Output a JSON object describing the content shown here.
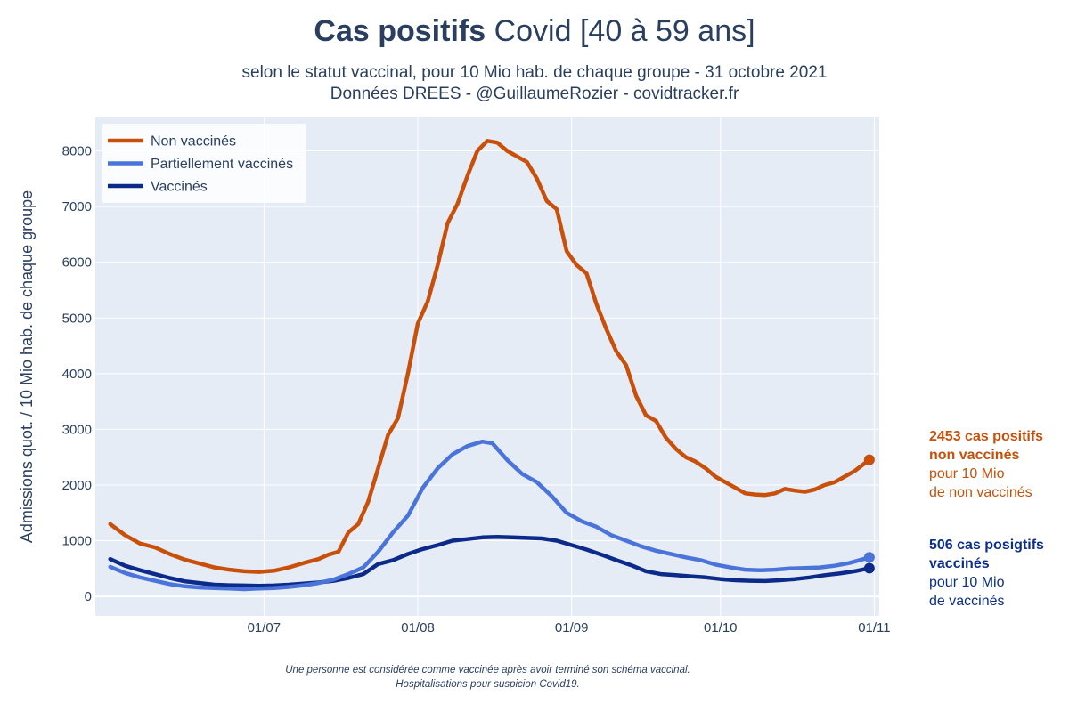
{
  "header": {
    "title_bold": "Cas positifs",
    "title_rest": " Covid [40 à 59 ans]",
    "subtitle_line1": "selon le statut vaccinal, pour 10 Mio hab. de chaque groupe - 31 octobre 2021",
    "subtitle_line2": "Données DREES - @GuillaumeRozier - covidtracker.fr"
  },
  "footer": {
    "line1": "Une personne est considérée comme vaccinée après avoir terminé son schéma vaccinal.",
    "line2": "Hospitalisations pour suspicion Covid19."
  },
  "annotations": {
    "non_vaccines": {
      "bold1": "2453 cas positifs",
      "bold2": "non vaccinés",
      "line3": "pour 10 Mio",
      "line4": "de non vaccinés"
    },
    "vaccines": {
      "bold1": "506 cas posigtifs",
      "bold2": "vaccinés",
      "line3": "pour 10 Mio",
      "line4": "de vaccinés"
    }
  },
  "colors": {
    "non_vaccines": "#c8500a",
    "partiellement": "#4a74d9",
    "vaccines": "#0b2a8a",
    "plot_bg": "#e5ecf6"
  },
  "chart_data": {
    "type": "line",
    "ylabel": "Admissions quot. / 10 Mio hab. de chaque groupe",
    "xlabel": "",
    "x_start": "2021-05-31",
    "x_end": "2021-10-31",
    "xlim": [
      "2021-05-28",
      "2021-11-02"
    ],
    "ylim": [
      -350,
      8600
    ],
    "x_ticks": [
      {
        "date": "2021-07-01",
        "label": "01/07"
      },
      {
        "date": "2021-08-01",
        "label": "01/08"
      },
      {
        "date": "2021-09-01",
        "label": "01/09"
      },
      {
        "date": "2021-10-01",
        "label": "01/10"
      },
      {
        "date": "2021-11-01",
        "label": "01/11"
      }
    ],
    "y_ticks": [
      0,
      1000,
      2000,
      3000,
      4000,
      5000,
      6000,
      7000,
      8000
    ],
    "grid": true,
    "legend_position": "top-left",
    "series": [
      {
        "name": "Non vaccinés",
        "color": "#c8500a",
        "points": [
          [
            "2021-05-31",
            1300
          ],
          [
            "2021-06-03",
            1100
          ],
          [
            "2021-06-06",
            950
          ],
          [
            "2021-06-09",
            880
          ],
          [
            "2021-06-12",
            760
          ],
          [
            "2021-06-15",
            660
          ],
          [
            "2021-06-18",
            590
          ],
          [
            "2021-06-21",
            520
          ],
          [
            "2021-06-24",
            480
          ],
          [
            "2021-06-27",
            450
          ],
          [
            "2021-06-30",
            440
          ],
          [
            "2021-07-03",
            460
          ],
          [
            "2021-07-06",
            520
          ],
          [
            "2021-07-09",
            600
          ],
          [
            "2021-07-12",
            670
          ],
          [
            "2021-07-14",
            750
          ],
          [
            "2021-07-16",
            800
          ],
          [
            "2021-07-18",
            1150
          ],
          [
            "2021-07-20",
            1300
          ],
          [
            "2021-07-22",
            1700
          ],
          [
            "2021-07-24",
            2300
          ],
          [
            "2021-07-26",
            2900
          ],
          [
            "2021-07-28",
            3200
          ],
          [
            "2021-07-30",
            4000
          ],
          [
            "2021-08-01",
            4900
          ],
          [
            "2021-08-03",
            5300
          ],
          [
            "2021-08-05",
            5950
          ],
          [
            "2021-08-07",
            6700
          ],
          [
            "2021-08-09",
            7050
          ],
          [
            "2021-08-11",
            7550
          ],
          [
            "2021-08-13",
            8000
          ],
          [
            "2021-08-15",
            8180
          ],
          [
            "2021-08-17",
            8150
          ],
          [
            "2021-08-19",
            8000
          ],
          [
            "2021-08-21",
            7900
          ],
          [
            "2021-08-23",
            7800
          ],
          [
            "2021-08-25",
            7500
          ],
          [
            "2021-08-27",
            7100
          ],
          [
            "2021-08-29",
            6950
          ],
          [
            "2021-08-31",
            6200
          ],
          [
            "2021-09-02",
            5950
          ],
          [
            "2021-09-04",
            5800
          ],
          [
            "2021-09-06",
            5250
          ],
          [
            "2021-09-08",
            4800
          ],
          [
            "2021-09-10",
            4400
          ],
          [
            "2021-09-12",
            4150
          ],
          [
            "2021-09-14",
            3600
          ],
          [
            "2021-09-16",
            3250
          ],
          [
            "2021-09-18",
            3150
          ],
          [
            "2021-09-20",
            2850
          ],
          [
            "2021-09-22",
            2650
          ],
          [
            "2021-09-24",
            2500
          ],
          [
            "2021-09-26",
            2420
          ],
          [
            "2021-09-28",
            2300
          ],
          [
            "2021-09-30",
            2150
          ],
          [
            "2021-10-02",
            2050
          ],
          [
            "2021-10-04",
            1950
          ],
          [
            "2021-10-06",
            1850
          ],
          [
            "2021-10-08",
            1830
          ],
          [
            "2021-10-10",
            1820
          ],
          [
            "2021-10-12",
            1850
          ],
          [
            "2021-10-14",
            1930
          ],
          [
            "2021-10-16",
            1900
          ],
          [
            "2021-10-18",
            1880
          ],
          [
            "2021-10-20",
            1920
          ],
          [
            "2021-10-22",
            2000
          ],
          [
            "2021-10-24",
            2050
          ],
          [
            "2021-10-26",
            2150
          ],
          [
            "2021-10-28",
            2250
          ],
          [
            "2021-10-31",
            2453
          ]
        ]
      },
      {
        "name": "Partiellement vaccinés",
        "color": "#4a74d9",
        "points": [
          [
            "2021-05-31",
            530
          ],
          [
            "2021-06-03",
            420
          ],
          [
            "2021-06-06",
            340
          ],
          [
            "2021-06-09",
            280
          ],
          [
            "2021-06-12",
            220
          ],
          [
            "2021-06-15",
            180
          ],
          [
            "2021-06-18",
            160
          ],
          [
            "2021-06-21",
            150
          ],
          [
            "2021-06-24",
            140
          ],
          [
            "2021-06-27",
            130
          ],
          [
            "2021-06-30",
            140
          ],
          [
            "2021-07-03",
            150
          ],
          [
            "2021-07-06",
            170
          ],
          [
            "2021-07-09",
            200
          ],
          [
            "2021-07-12",
            240
          ],
          [
            "2021-07-15",
            300
          ],
          [
            "2021-07-18",
            400
          ],
          [
            "2021-07-21",
            520
          ],
          [
            "2021-07-24",
            800
          ],
          [
            "2021-07-27",
            1150
          ],
          [
            "2021-07-30",
            1450
          ],
          [
            "2021-08-02",
            1950
          ],
          [
            "2021-08-05",
            2300
          ],
          [
            "2021-08-08",
            2550
          ],
          [
            "2021-08-11",
            2700
          ],
          [
            "2021-08-14",
            2780
          ],
          [
            "2021-08-16",
            2750
          ],
          [
            "2021-08-19",
            2450
          ],
          [
            "2021-08-22",
            2200
          ],
          [
            "2021-08-25",
            2050
          ],
          [
            "2021-08-28",
            1800
          ],
          [
            "2021-08-31",
            1500
          ],
          [
            "2021-09-03",
            1350
          ],
          [
            "2021-09-06",
            1250
          ],
          [
            "2021-09-09",
            1100
          ],
          [
            "2021-09-12",
            1000
          ],
          [
            "2021-09-15",
            900
          ],
          [
            "2021-09-18",
            820
          ],
          [
            "2021-09-21",
            760
          ],
          [
            "2021-09-24",
            700
          ],
          [
            "2021-09-27",
            650
          ],
          [
            "2021-09-30",
            570
          ],
          [
            "2021-10-03",
            520
          ],
          [
            "2021-10-06",
            480
          ],
          [
            "2021-10-09",
            470
          ],
          [
            "2021-10-12",
            480
          ],
          [
            "2021-10-15",
            500
          ],
          [
            "2021-10-18",
            510
          ],
          [
            "2021-10-21",
            520
          ],
          [
            "2021-10-24",
            550
          ],
          [
            "2021-10-27",
            600
          ],
          [
            "2021-10-31",
            700
          ]
        ]
      },
      {
        "name": "Vaccinés",
        "color": "#0b2a8a",
        "points": [
          [
            "2021-05-31",
            670
          ],
          [
            "2021-06-03",
            550
          ],
          [
            "2021-06-06",
            470
          ],
          [
            "2021-06-09",
            400
          ],
          [
            "2021-06-12",
            330
          ],
          [
            "2021-06-15",
            270
          ],
          [
            "2021-06-18",
            240
          ],
          [
            "2021-06-21",
            210
          ],
          [
            "2021-06-24",
            200
          ],
          [
            "2021-06-27",
            195
          ],
          [
            "2021-06-30",
            190
          ],
          [
            "2021-07-03",
            195
          ],
          [
            "2021-07-06",
            210
          ],
          [
            "2021-07-09",
            230
          ],
          [
            "2021-07-12",
            250
          ],
          [
            "2021-07-15",
            280
          ],
          [
            "2021-07-18",
            330
          ],
          [
            "2021-07-21",
            400
          ],
          [
            "2021-07-24",
            580
          ],
          [
            "2021-07-27",
            650
          ],
          [
            "2021-07-30",
            760
          ],
          [
            "2021-08-02",
            850
          ],
          [
            "2021-08-05",
            920
          ],
          [
            "2021-08-08",
            1000
          ],
          [
            "2021-08-11",
            1030
          ],
          [
            "2021-08-14",
            1060
          ],
          [
            "2021-08-17",
            1070
          ],
          [
            "2021-08-20",
            1060
          ],
          [
            "2021-08-23",
            1050
          ],
          [
            "2021-08-26",
            1040
          ],
          [
            "2021-08-29",
            1000
          ],
          [
            "2021-09-01",
            920
          ],
          [
            "2021-09-04",
            840
          ],
          [
            "2021-09-07",
            750
          ],
          [
            "2021-09-10",
            650
          ],
          [
            "2021-09-13",
            560
          ],
          [
            "2021-09-16",
            450
          ],
          [
            "2021-09-19",
            400
          ],
          [
            "2021-09-22",
            380
          ],
          [
            "2021-09-25",
            360
          ],
          [
            "2021-09-28",
            340
          ],
          [
            "2021-10-01",
            310
          ],
          [
            "2021-10-04",
            290
          ],
          [
            "2021-10-07",
            280
          ],
          [
            "2021-10-10",
            275
          ],
          [
            "2021-10-13",
            290
          ],
          [
            "2021-10-16",
            310
          ],
          [
            "2021-10-19",
            340
          ],
          [
            "2021-10-22",
            380
          ],
          [
            "2021-10-25",
            410
          ],
          [
            "2021-10-28",
            450
          ],
          [
            "2021-10-31",
            506
          ]
        ]
      }
    ]
  }
}
